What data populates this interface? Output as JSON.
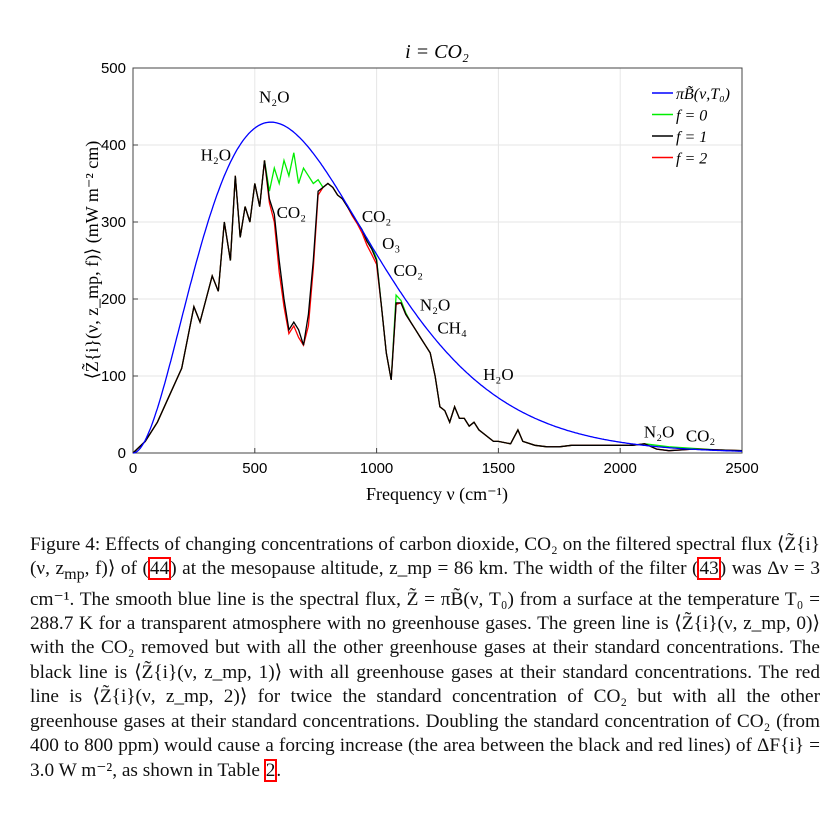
{
  "chart_data": {
    "type": "line",
    "title": "i =  CO₂",
    "xlabel": "Frequency ν (cm⁻¹)",
    "ylabel": "⟨Z̃{i}(ν, z_mp, f)⟩ (mW m⁻² cm)",
    "xlim": [
      0,
      2500
    ],
    "ylim": [
      0,
      500
    ],
    "xticks": [
      "0",
      "500",
      "1000",
      "1500",
      "2000",
      "2500"
    ],
    "yticks": [
      "0",
      "100",
      "200",
      "300",
      "400",
      "500"
    ],
    "grid": true,
    "legend_placement": "top-right",
    "planck_T0": 288.7,
    "x": [
      0,
      50,
      100,
      150,
      200,
      225,
      250,
      275,
      300,
      325,
      350,
      375,
      400,
      420,
      440,
      460,
      480,
      500,
      520,
      540,
      560,
      580,
      600,
      620,
      640,
      660,
      680,
      700,
      720,
      740,
      760,
      780,
      800,
      820,
      840,
      860,
      880,
      900,
      920,
      940,
      960,
      980,
      1000,
      1020,
      1040,
      1060,
      1080,
      1100,
      1120,
      1140,
      1160,
      1180,
      1200,
      1220,
      1240,
      1260,
      1280,
      1300,
      1320,
      1340,
      1360,
      1380,
      1400,
      1420,
      1440,
      1460,
      1480,
      1500,
      1550,
      1580,
      1600,
      1650,
      1700,
      1750,
      1800,
      1850,
      1900,
      1950,
      2000,
      2050,
      2100,
      2150,
      2200,
      2300,
      2400,
      2500
    ],
    "series": [
      {
        "name": "πB̃(ν,T₀)",
        "color": "#0000ff",
        "planck": true
      },
      {
        "name": "f = 0",
        "color": "#00ee00",
        "values": [
          0,
          15,
          40,
          75,
          110,
          150,
          190,
          170,
          200,
          230,
          210,
          300,
          250,
          360,
          280,
          320,
          300,
          350,
          320,
          380,
          340,
          370,
          350,
          380,
          360,
          390,
          350,
          370,
          360,
          350,
          355,
          345,
          350,
          345,
          335,
          330,
          320,
          310,
          300,
          290,
          278,
          268,
          252,
          190,
          130,
          95,
          205,
          198,
          182,
          170,
          160,
          150,
          140,
          130,
          100,
          60,
          55,
          40,
          60,
          45,
          45,
          35,
          40,
          30,
          25,
          20,
          15,
          15,
          12,
          30,
          15,
          10,
          8,
          8,
          10,
          10,
          10,
          10,
          10,
          10,
          12,
          10,
          8,
          6,
          4,
          3
        ]
      },
      {
        "name": "f = 1",
        "color": "#000000",
        "values": [
          0,
          15,
          40,
          75,
          110,
          150,
          190,
          170,
          200,
          230,
          210,
          300,
          250,
          360,
          280,
          320,
          300,
          350,
          320,
          380,
          330,
          310,
          250,
          200,
          160,
          170,
          160,
          140,
          180,
          250,
          340,
          345,
          350,
          345,
          335,
          330,
          320,
          310,
          300,
          290,
          275,
          265,
          250,
          190,
          130,
          95,
          195,
          195,
          180,
          170,
          160,
          150,
          140,
          130,
          100,
          60,
          55,
          40,
          60,
          45,
          45,
          35,
          40,
          30,
          25,
          20,
          15,
          15,
          12,
          30,
          15,
          10,
          8,
          8,
          10,
          10,
          10,
          10,
          10,
          10,
          12,
          5,
          3,
          5,
          4,
          3
        ]
      },
      {
        "name": "f = 2",
        "color": "#ff0000",
        "values": [
          0,
          15,
          40,
          75,
          110,
          150,
          190,
          170,
          200,
          230,
          210,
          300,
          250,
          360,
          280,
          320,
          300,
          350,
          320,
          380,
          325,
          300,
          235,
          190,
          155,
          165,
          150,
          140,
          165,
          240,
          335,
          345,
          350,
          345,
          335,
          330,
          320,
          308,
          298,
          286,
          270,
          258,
          245,
          190,
          130,
          95,
          193,
          195,
          180,
          170,
          160,
          150,
          140,
          130,
          100,
          60,
          55,
          40,
          60,
          45,
          45,
          35,
          40,
          30,
          25,
          20,
          15,
          15,
          12,
          30,
          15,
          10,
          8,
          8,
          10,
          10,
          10,
          10,
          10,
          10,
          12,
          5,
          3,
          5,
          4,
          3
        ]
      }
    ],
    "annotations": [
      {
        "text": "N₂O",
        "x": 580,
        "y": 455
      },
      {
        "text": "H₂O",
        "x": 340,
        "y": 380
      },
      {
        "text": "CO₂",
        "x": 650,
        "y": 305
      },
      {
        "text": "CO₂",
        "x": 1000,
        "y": 300
      },
      {
        "text": "O₃",
        "x": 1060,
        "y": 265
      },
      {
        "text": "CO₂",
        "x": 1130,
        "y": 230
      },
      {
        "text": "N₂O",
        "x": 1240,
        "y": 185
      },
      {
        "text": "CH₄",
        "x": 1310,
        "y": 155
      },
      {
        "text": "H₂O",
        "x": 1500,
        "y": 95
      },
      {
        "text": "N₂O",
        "x": 2160,
        "y": 20
      },
      {
        "text": "CO₂",
        "x": 2330,
        "y": 15
      }
    ]
  },
  "caption": {
    "p1": "Figure 4: Effects of changing concentrations of carbon dioxide, CO₂ on the filtered spectral flux ⟨Z̃{i}(ν, z",
    "p1sub": "mp",
    "p2": ", f)⟩ of (",
    "ref1": "44",
    "p3": ") at the mesopause altitude, z_mp = 86 km. The width of the filter (",
    "ref2": "43",
    "p4": ") was Δν = 3 cm⁻¹. The smooth blue line is the spectral flux, Z̃ = πB̃(ν, T₀) from a surface at the temperature T₀ = 288.7 K for a transparent atmosphere with no greenhouse gases. The green line is ⟨Z̃{i}(ν, z_mp, 0)⟩ with the CO₂ removed but with all the other greenhouse gases at their standard concentrations. The black line is ⟨Z̃{i}(ν, z_mp, 1)⟩ with all greenhouse gases at their standard concentrations. The red line is ⟨Z̃{i}(ν, z_mp, 2)⟩ for twice the standard concentration of CO₂ but with all the other greenhouse gases at their standard concentrations. Doubling the standard concentration of CO₂ (from 400 to 800 ppm) would cause a forcing increase (the area between the black and red lines) of ΔF{i} = 3.0 W m⁻², as shown in Table ",
    "ref3": "2",
    "p5": "."
  }
}
